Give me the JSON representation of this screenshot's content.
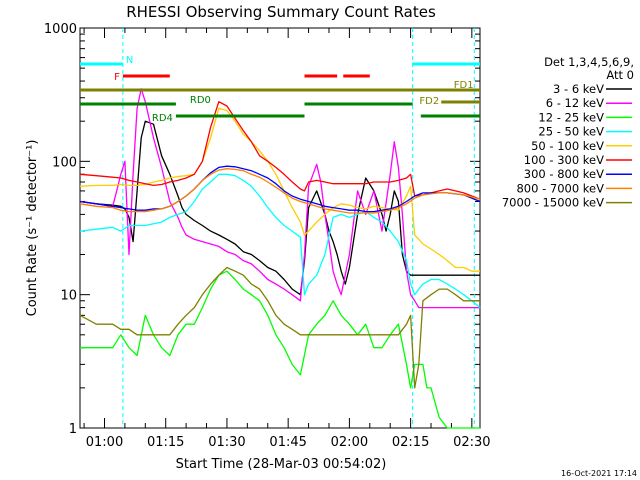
{
  "chart_data": {
    "type": "line",
    "title": "RHESSI Observing Summary Count Rates",
    "xlabel": "Start Time (28-Mar-03 00:54:02)",
    "ylabel": "Count Rate (s⁻¹ detector⁻¹)",
    "x_unit": "minutes after 00:54:02",
    "xlim": [
      0,
      98
    ],
    "ylim": [
      1,
      1000
    ],
    "y_scale": "log",
    "grid": false,
    "legend_placement": "right",
    "x_ticks": [
      {
        "label": "01:00",
        "value": 6
      },
      {
        "label": "01:15",
        "value": 21
      },
      {
        "label": "01:30",
        "value": 36
      },
      {
        "label": "01:45",
        "value": 51
      },
      {
        "label": "02:00",
        "value": 66
      },
      {
        "label": "02:15",
        "value": 81
      },
      {
        "label": "02:30",
        "value": 96
      }
    ],
    "y_ticks": [
      {
        "label": "1",
        "value": 1
      },
      {
        "label": "10",
        "value": 10
      },
      {
        "label": "100",
        "value": 100
      },
      {
        "label": "1000",
        "value": 1000
      }
    ],
    "detector_info": [
      "Det 1,3,4,5,6,9,",
      "Att 0"
    ],
    "timestamp": "16-Oct-2021 17:14",
    "bars": [
      {
        "label": "N",
        "color": "#00ffff",
        "y_level": 0.91,
        "segments": [
          [
            0,
            10.5
          ],
          [
            81.5,
            98
          ]
        ]
      },
      {
        "label": "F",
        "color": "#ff0000",
        "y_level": 0.88,
        "segments": [
          [
            10.5,
            22
          ],
          [
            55,
            63
          ],
          [
            64.5,
            71
          ]
        ]
      },
      {
        "label": "FD1",
        "color": "#808000",
        "y_level": 0.845,
        "segments": [
          [
            0,
            98
          ]
        ]
      },
      {
        "label": "FD2",
        "color": "#808000",
        "y_level": 0.815,
        "segments": [
          [
            88.5,
            98
          ]
        ]
      },
      {
        "label": "RD0",
        "color": "#008000",
        "y_level": 0.81,
        "segments": [
          [
            0,
            23.5
          ],
          [
            55,
            81.5
          ]
        ]
      },
      {
        "label": "RD4",
        "color": "#008000",
        "y_level": 0.78,
        "segments": [
          [
            23.5,
            55
          ],
          [
            83.5,
            98
          ]
        ]
      }
    ],
    "vlines": [
      {
        "x": 10.5,
        "color": "#00ffff"
      },
      {
        "x": 81.5,
        "color": "#00ffff"
      },
      {
        "x": 96.6,
        "color": "#00ffff"
      }
    ],
    "series": [
      {
        "name": "3 - 6 keV",
        "color": "#000000",
        "x": [
          0,
          4,
          8,
          10,
          11,
          12,
          13,
          14,
          15,
          16,
          18,
          20,
          22,
          24,
          25,
          26,
          28,
          30,
          32,
          34,
          36,
          38,
          40,
          42,
          44,
          46,
          48,
          50,
          52,
          54,
          55,
          56,
          58,
          60,
          61,
          62,
          63,
          64,
          65,
          66,
          68,
          70,
          72,
          74,
          75,
          76,
          77,
          78,
          79,
          80,
          81,
          82,
          83,
          84,
          86,
          88,
          90,
          92,
          94,
          96,
          98
        ],
        "y": [
          50,
          48,
          47,
          46,
          44,
          38,
          25,
          60,
          150,
          200,
          190,
          110,
          80,
          55,
          45,
          40,
          36,
          33,
          30,
          28,
          26,
          24,
          21,
          20,
          18,
          16,
          15,
          13,
          11,
          10,
          18,
          45,
          60,
          40,
          30,
          25,
          20,
          15,
          12,
          16,
          40,
          75,
          60,
          40,
          30,
          40,
          60,
          50,
          20,
          15,
          14,
          14,
          14,
          14,
          14,
          14,
          14,
          14,
          14,
          14,
          14
        ]
      },
      {
        "name": "6 - 12 keV",
        "color": "#ff00ff",
        "x": [
          0,
          4,
          8,
          9,
          10,
          11,
          12,
          13,
          14,
          15,
          16,
          18,
          20,
          22,
          24,
          25,
          26,
          28,
          30,
          32,
          34,
          36,
          38,
          40,
          42,
          44,
          46,
          48,
          50,
          52,
          54,
          55,
          56,
          58,
          59,
          60,
          61,
          62,
          63,
          64,
          66,
          68,
          70,
          72,
          74,
          76,
          77,
          78,
          79,
          80,
          81,
          82,
          83,
          84,
          86,
          88,
          90,
          92,
          94,
          96,
          98
        ],
        "y": [
          50,
          48,
          46,
          60,
          80,
          100,
          20,
          80,
          250,
          350,
          280,
          150,
          90,
          50,
          38,
          32,
          28,
          26,
          25,
          24,
          23,
          21,
          20,
          18,
          17,
          15,
          13,
          12,
          11,
          10,
          9,
          20,
          65,
          95,
          70,
          40,
          25,
          15,
          12,
          10,
          20,
          60,
          40,
          60,
          30,
          80,
          140,
          90,
          40,
          15,
          10,
          9,
          8,
          8,
          8,
          8,
          8,
          8,
          8,
          8,
          8
        ]
      },
      {
        "name": "12 - 25 keV",
        "color": "#00ff00",
        "x": [
          0,
          4,
          8,
          10,
          12,
          14,
          16,
          18,
          20,
          22,
          24,
          26,
          28,
          30,
          32,
          34,
          36,
          38,
          40,
          42,
          44,
          46,
          48,
          50,
          52,
          54,
          56,
          58,
          60,
          62,
          64,
          66,
          68,
          70,
          72,
          74,
          76,
          78,
          80,
          81,
          82,
          83,
          84,
          85,
          86,
          88,
          90,
          92,
          94,
          96,
          98
        ],
        "y": [
          4,
          4,
          4,
          5,
          4,
          3.5,
          7,
          5,
          4,
          3.5,
          5,
          6,
          6,
          8,
          11,
          14,
          15,
          13,
          11,
          10,
          9,
          7,
          5,
          4,
          3,
          2.5,
          5,
          6,
          7,
          9,
          7,
          6,
          5,
          6,
          4,
          4,
          5,
          6,
          3,
          2,
          3,
          3,
          3,
          2,
          2,
          1.2,
          1,
          1,
          1,
          1,
          1
        ]
      },
      {
        "name": "25 - 50 keV",
        "color": "#00ffff",
        "x": [
          0,
          4,
          8,
          10,
          12,
          14,
          16,
          18,
          20,
          22,
          24,
          26,
          28,
          30,
          32,
          34,
          36,
          38,
          40,
          42,
          44,
          46,
          48,
          50,
          52,
          54,
          55,
          56,
          58,
          60,
          62,
          64,
          66,
          68,
          70,
          72,
          74,
          76,
          78,
          80,
          81,
          82,
          83,
          84,
          86,
          88,
          90,
          92,
          94,
          96,
          98
        ],
        "y": [
          30,
          31,
          32,
          30,
          33,
          33,
          33,
          34,
          35,
          38,
          40,
          42,
          50,
          62,
          70,
          80,
          80,
          78,
          72,
          65,
          55,
          45,
          38,
          33,
          30,
          27,
          10,
          12,
          14,
          20,
          38,
          40,
          38,
          40,
          42,
          38,
          35,
          30,
          25,
          18,
          12,
          10,
          11,
          12,
          13,
          13,
          12,
          11,
          10,
          9,
          8
        ]
      },
      {
        "name": "50 - 100 keV",
        "color": "#ffcc00",
        "x": [
          0,
          4,
          8,
          10,
          12,
          14,
          16,
          18,
          20,
          22,
          24,
          26,
          28,
          30,
          32,
          34,
          36,
          38,
          40,
          42,
          44,
          46,
          48,
          50,
          52,
          54,
          55,
          56,
          58,
          60,
          62,
          64,
          66,
          68,
          70,
          72,
          74,
          76,
          78,
          80,
          81,
          82,
          83,
          84,
          86,
          88,
          90,
          92,
          94,
          96,
          98
        ],
        "y": [
          65,
          66,
          66,
          67,
          66,
          66,
          67,
          70,
          72,
          75,
          77,
          78,
          80,
          100,
          150,
          250,
          240,
          200,
          160,
          140,
          120,
          100,
          80,
          60,
          45,
          35,
          28,
          30,
          35,
          40,
          45,
          48,
          47,
          45,
          44,
          46,
          45,
          44,
          43,
          55,
          65,
          28,
          26,
          24,
          22,
          20,
          18,
          16,
          16,
          15,
          15
        ]
      },
      {
        "name": "100 - 300 keV",
        "color": "#ff0000",
        "x": [
          0,
          4,
          8,
          10,
          12,
          14,
          16,
          18,
          20,
          22,
          24,
          26,
          28,
          30,
          32,
          34,
          36,
          38,
          40,
          42,
          44,
          46,
          48,
          50,
          52,
          54,
          55,
          56,
          58,
          60,
          62,
          64,
          66,
          68,
          70,
          72,
          74,
          76,
          78,
          80,
          81,
          82,
          84,
          86,
          88,
          90,
          92,
          94,
          96,
          98
        ],
        "y": [
          80,
          78,
          76,
          75,
          72,
          70,
          68,
          66,
          67,
          70,
          72,
          75,
          80,
          100,
          180,
          280,
          260,
          210,
          170,
          140,
          110,
          100,
          90,
          80,
          70,
          62,
          60,
          70,
          72,
          70,
          68,
          68,
          68,
          68,
          68,
          70,
          70,
          70,
          72,
          75,
          80,
          55,
          56,
          58,
          60,
          62,
          60,
          58,
          55,
          52
        ]
      },
      {
        "name": "300 - 800 keV",
        "color": "#0000ff",
        "x": [
          0,
          4,
          8,
          10,
          12,
          14,
          16,
          18,
          20,
          22,
          24,
          26,
          28,
          30,
          32,
          34,
          36,
          38,
          40,
          42,
          44,
          46,
          48,
          50,
          52,
          54,
          56,
          58,
          60,
          62,
          64,
          66,
          68,
          70,
          72,
          74,
          76,
          78,
          80,
          82,
          84,
          86,
          88,
          90,
          92,
          94,
          96,
          98
        ],
        "y": [
          50,
          48,
          46,
          45,
          44,
          43,
          43,
          44,
          44,
          46,
          50,
          55,
          62,
          72,
          82,
          90,
          92,
          91,
          88,
          85,
          80,
          75,
          68,
          60,
          55,
          52,
          50,
          48,
          46,
          45,
          44,
          43,
          43,
          42,
          42,
          43,
          44,
          46,
          50,
          55,
          58,
          58,
          58,
          58,
          57,
          56,
          53,
          50
        ]
      },
      {
        "name": "800 - 7000 keV",
        "color": "#ff8000",
        "x": [
          0,
          4,
          8,
          10,
          12,
          14,
          16,
          18,
          20,
          22,
          24,
          26,
          28,
          30,
          32,
          34,
          36,
          38,
          40,
          42,
          44,
          46,
          48,
          50,
          52,
          54,
          56,
          58,
          60,
          62,
          64,
          66,
          68,
          70,
          72,
          74,
          76,
          78,
          80,
          82,
          84,
          86,
          88,
          90,
          92,
          94,
          96,
          98
        ],
        "y": [
          48,
          46,
          45,
          43,
          42,
          42,
          42,
          43,
          44,
          46,
          50,
          55,
          62,
          72,
          80,
          86,
          88,
          87,
          85,
          80,
          76,
          70,
          64,
          58,
          53,
          50,
          48,
          46,
          44,
          43,
          42,
          41,
          41,
          41,
          41,
          42,
          43,
          45,
          48,
          53,
          56,
          57,
          58,
          58,
          57,
          56,
          54,
          52
        ]
      },
      {
        "name": "7000 - 15000 keV",
        "color": "#808000",
        "x": [
          0,
          4,
          8,
          10,
          12,
          14,
          16,
          18,
          20,
          22,
          24,
          26,
          28,
          30,
          32,
          34,
          36,
          38,
          40,
          42,
          44,
          46,
          48,
          50,
          52,
          54,
          56,
          58,
          60,
          62,
          64,
          66,
          68,
          70,
          72,
          74,
          76,
          78,
          80,
          81,
          82,
          83,
          84,
          86,
          88,
          90,
          92,
          94,
          96,
          98
        ],
        "y": [
          7,
          6,
          6,
          5.5,
          5.5,
          5,
          5,
          5,
          5,
          5,
          6,
          7,
          8,
          10,
          12,
          14,
          16,
          15,
          14,
          12,
          11,
          9,
          7,
          6,
          5.5,
          5,
          5,
          5,
          5,
          5,
          5,
          5,
          5,
          5,
          5,
          5,
          5,
          5,
          6,
          7,
          2,
          3,
          9,
          10,
          11,
          11,
          10,
          9,
          9,
          9
        ]
      }
    ]
  }
}
